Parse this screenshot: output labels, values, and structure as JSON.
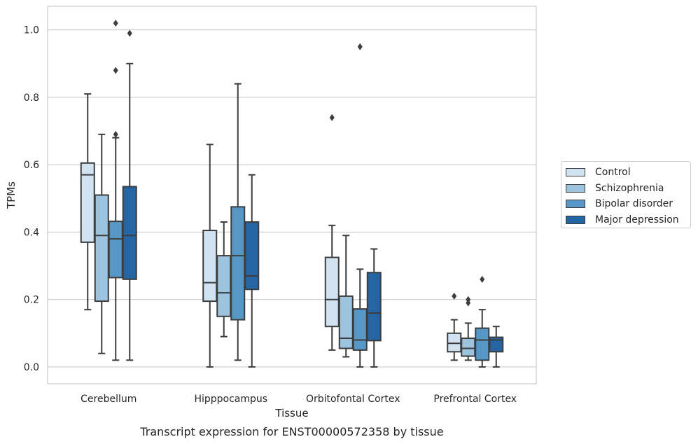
{
  "caption": "Transcript expression for ENST00000572358 by tissue",
  "chart_data": {
    "type": "box",
    "xlabel": "Tissue",
    "ylabel": "TPMs",
    "ylim": [
      -0.05,
      1.07
    ],
    "yticks": [
      "0.0",
      "0.2",
      "0.4",
      "0.6",
      "0.8",
      "1.0"
    ],
    "ytick_values": [
      0.0,
      0.2,
      0.4,
      0.6,
      0.8,
      1.0
    ],
    "grid": "horizontal",
    "legend_position": "right-outside",
    "categories": [
      "Cerebellum",
      "Hipppocampus",
      "Orbitofontal Cortex",
      "Prefrontal Cortex"
    ],
    "series": [
      {
        "name": "Control",
        "color": "#d1e2f1",
        "boxes": [
          {
            "whislo": 0.17,
            "q1": 0.37,
            "med": 0.57,
            "q3": 0.605,
            "whishi": 0.81,
            "fliers": []
          },
          {
            "whislo": 0.0,
            "q1": 0.195,
            "med": 0.25,
            "q3": 0.405,
            "whishi": 0.66,
            "fliers": []
          },
          {
            "whislo": 0.05,
            "q1": 0.12,
            "med": 0.2,
            "q3": 0.325,
            "whishi": 0.42,
            "fliers": [
              0.74
            ]
          },
          {
            "whislo": 0.02,
            "q1": 0.045,
            "med": 0.07,
            "q3": 0.1,
            "whishi": 0.14,
            "fliers": [
              0.21
            ]
          }
        ]
      },
      {
        "name": "Schizophrenia",
        "color": "#9cc4de",
        "boxes": [
          {
            "whislo": 0.04,
            "q1": 0.195,
            "med": 0.39,
            "q3": 0.51,
            "whishi": 0.69,
            "fliers": []
          },
          {
            "whislo": 0.09,
            "q1": 0.15,
            "med": 0.22,
            "q3": 0.33,
            "whishi": 0.43,
            "fliers": []
          },
          {
            "whislo": 0.03,
            "q1": 0.055,
            "med": 0.085,
            "q3": 0.21,
            "whishi": 0.39,
            "fliers": []
          },
          {
            "whislo": 0.02,
            "q1": 0.032,
            "med": 0.055,
            "q3": 0.085,
            "whishi": 0.13,
            "fliers": [
              0.19,
              0.2
            ]
          }
        ]
      },
      {
        "name": "Bipolar disorder",
        "color": "#5697c6",
        "boxes": [
          {
            "whislo": 0.02,
            "q1": 0.265,
            "med": 0.38,
            "q3": 0.432,
            "whishi": 0.68,
            "fliers": [
              0.69,
              0.88,
              1.02
            ]
          },
          {
            "whislo": 0.02,
            "q1": 0.14,
            "med": 0.33,
            "q3": 0.475,
            "whishi": 0.84,
            "fliers": []
          },
          {
            "whislo": 0.0,
            "q1": 0.05,
            "med": 0.08,
            "q3": 0.172,
            "whishi": 0.29,
            "fliers": [
              0.95
            ]
          },
          {
            "whislo": 0.0,
            "q1": 0.02,
            "med": 0.08,
            "q3": 0.115,
            "whishi": 0.17,
            "fliers": [
              0.26
            ]
          }
        ]
      },
      {
        "name": "Major depression",
        "color": "#2565a3",
        "boxes": [
          {
            "whislo": 0.02,
            "q1": 0.26,
            "med": 0.39,
            "q3": 0.535,
            "whishi": 0.9,
            "fliers": [
              0.99
            ]
          },
          {
            "whislo": 0.0,
            "q1": 0.23,
            "med": 0.27,
            "q3": 0.43,
            "whishi": 0.57,
            "fliers": []
          },
          {
            "whislo": 0.0,
            "q1": 0.078,
            "med": 0.16,
            "q3": 0.28,
            "whishi": 0.35,
            "fliers": []
          },
          {
            "whislo": 0.0,
            "q1": 0.045,
            "med": 0.08,
            "q3": 0.088,
            "whishi": 0.12,
            "fliers": []
          }
        ]
      }
    ]
  }
}
